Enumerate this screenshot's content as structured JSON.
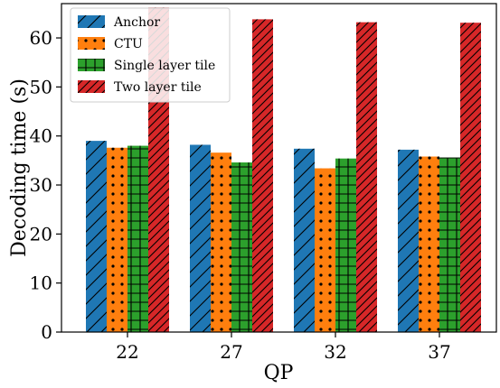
{
  "chart_data": {
    "type": "bar",
    "xlabel": "QP",
    "ylabel": "Decoding time (s)",
    "categories": [
      "22",
      "27",
      "32",
      "37"
    ],
    "ylim": [
      0,
      67
    ],
    "yticks": [
      0,
      10,
      20,
      30,
      40,
      50,
      60
    ],
    "grid": false,
    "legend_position": "top-left",
    "series": [
      {
        "name": "Anchor",
        "values": [
          39.0,
          38.2,
          37.4,
          37.2
        ],
        "color": "#1f77b4",
        "pattern": "diagonal-hatch"
      },
      {
        "name": "CTU",
        "values": [
          37.6,
          36.6,
          33.4,
          35.8
        ],
        "color": "#ff7f0e",
        "pattern": "dots"
      },
      {
        "name": "Single layer tile",
        "values": [
          38.0,
          34.6,
          35.4,
          35.6
        ],
        "color": "#2ca02c",
        "pattern": "grid"
      },
      {
        "name": "Two layer tile",
        "values": [
          66.2,
          63.8,
          63.2,
          63.1
        ],
        "color": "#d62728",
        "pattern": "dense-diagonal-hatch"
      }
    ]
  }
}
